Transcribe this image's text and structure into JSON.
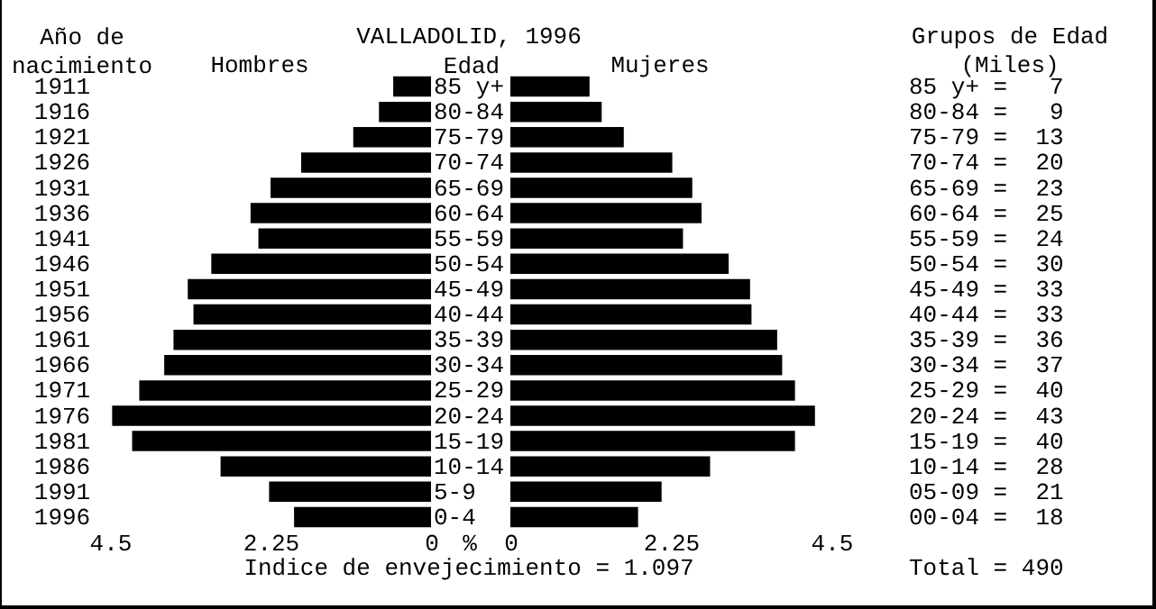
{
  "chart_data": [
    {
      "type": "bar",
      "orientation": "horizontal",
      "title": "VALLADOLID, 1996",
      "ylabel": "Año de nacimiento",
      "xlabel": "%",
      "categories": [
        "1911",
        "1916",
        "1921",
        "1926",
        "1931",
        "1936",
        "1941",
        "1946",
        "1951",
        "1956",
        "1961",
        "1966",
        "1971",
        "1976",
        "1981",
        "1986",
        "1991",
        "1996"
      ],
      "series": [
        {
          "name": "Hombres",
          "color": "#000000",
          "values": [
            0.53,
            0.73,
            1.09,
            1.82,
            2.25,
            2.53,
            2.42,
            3.08,
            3.41,
            3.33,
            3.61,
            3.74,
            4.09,
            4.47,
            4.19,
            2.95,
            2.27,
            1.92
          ]
        }
      ],
      "xlim": [
        4.5,
        0
      ],
      "xticks": [
        4.5,
        2.25,
        0
      ],
      "annotations": [
        "Indice de envejecimiento = 1.097"
      ]
    },
    {
      "type": "bar",
      "orientation": "horizontal",
      "ylabel": "Edad",
      "categories": [
        "85 y+",
        "80-84",
        "75-79",
        "70-74",
        "65-69",
        "60-64",
        "55-59",
        "50-54",
        "45-49",
        "40-44",
        "35-39",
        "30-34",
        "25-29",
        "20-24",
        "15-19",
        "10-14",
        "5-9",
        "0-4"
      ],
      "series": [
        {
          "name": "Mujeres",
          "color": "#000000",
          "values": [
            1.11,
            1.28,
            1.59,
            2.27,
            2.55,
            2.68,
            2.42,
            3.06,
            3.36,
            3.38,
            3.74,
            3.81,
            3.99,
            4.27,
            3.99,
            2.8,
            2.12,
            1.79
          ]
        }
      ],
      "xlim": [
        0,
        4.5
      ],
      "xticks": [
        0,
        2.25,
        4.5
      ]
    },
    {
      "type": "other",
      "title": "Grupos de Edad",
      "subtitle": "(Miles)",
      "annotations": [
        "85 y+ =   7",
        "80-84 =   9",
        "75-79 =  13",
        "70-74 =  20",
        "65-69 =  23",
        "60-64 =  25",
        "55-59 =  24",
        "50-54 =  30",
        "45-49 =  33",
        "40-44 =  33",
        "35-39 =  36",
        "30-34 =  37",
        "25-29 =  40",
        "20-24 =  43",
        "15-19 =  40",
        "10-14 =  28",
        "05-09 =  21",
        "00-04 =  18",
        "Total = 490"
      ]
    }
  ]
}
